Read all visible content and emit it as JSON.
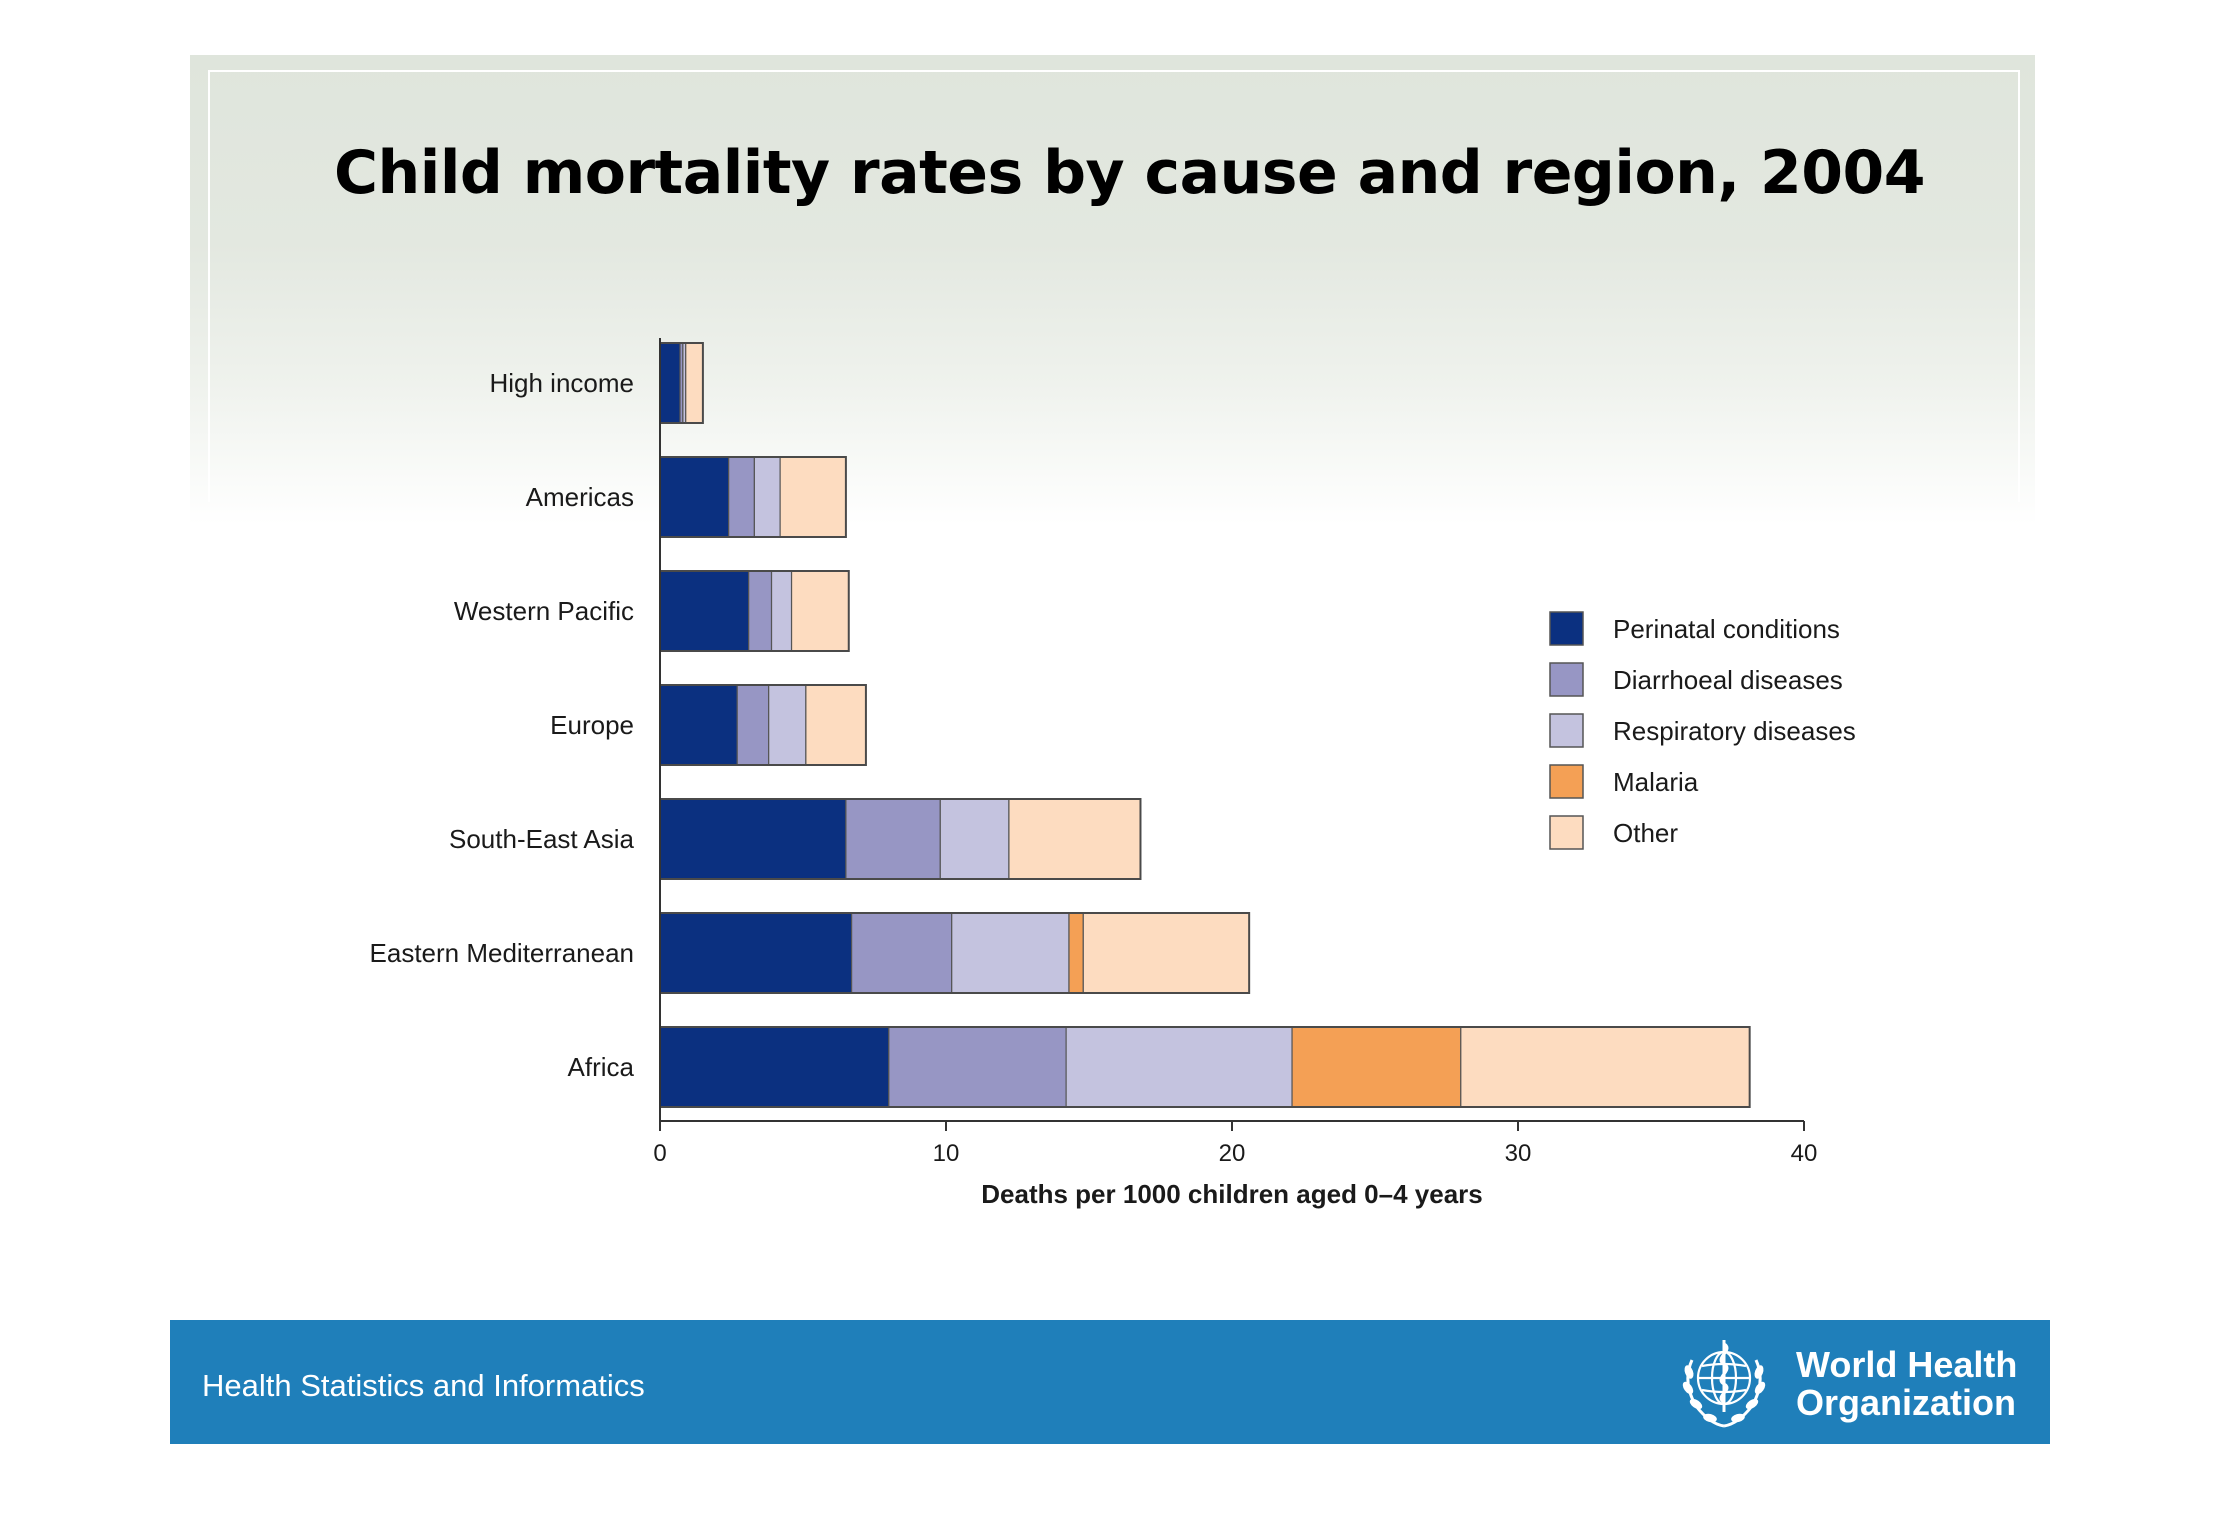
{
  "slide": {
    "title": "Child mortality rates by cause and region, 2004"
  },
  "colors": {
    "perinatal": "#0b3080",
    "diarrhoeal": "#9796c4",
    "respiratory": "#c4c3df",
    "malaria": "#f4a055",
    "other": "#fddcc0",
    "footer": "#1f7fba"
  },
  "chart_data": {
    "type": "bar",
    "orientation": "horizontal",
    "stacked": true,
    "title": "",
    "xlabel": "Deaths per 1000 children aged 0–4 years",
    "ylabel": "",
    "xlim": [
      0,
      40
    ],
    "xticks": [
      0,
      10,
      20,
      30,
      40
    ],
    "grid": false,
    "legend_position": "right",
    "categories": [
      "High income",
      "Americas",
      "Western Pacific",
      "Europe",
      "South-East Asia",
      "Eastern Mediterranean",
      "Africa"
    ],
    "series": [
      {
        "name": "Perinatal conditions",
        "color": "#0b3080",
        "values": [
          0.7,
          2.4,
          3.1,
          2.7,
          6.5,
          6.7,
          8.0
        ]
      },
      {
        "name": "Diarrhoeal diseases",
        "color": "#9796c4",
        "values": [
          0.1,
          0.9,
          0.8,
          1.1,
          3.3,
          3.5,
          6.2
        ]
      },
      {
        "name": "Respiratory diseases",
        "color": "#c4c3df",
        "values": [
          0.1,
          0.9,
          0.7,
          1.3,
          2.4,
          4.1,
          7.9
        ]
      },
      {
        "name": "Malaria",
        "color": "#f4a055",
        "values": [
          0.0,
          0.0,
          0.0,
          0.0,
          0.0,
          0.5,
          5.9
        ]
      },
      {
        "name": "Other",
        "color": "#fddcc0",
        "values": [
          0.6,
          2.3,
          2.0,
          2.1,
          4.6,
          5.8,
          10.1
        ]
      }
    ]
  },
  "footer": {
    "text": "Health Statistics and Informatics",
    "org_line1": "World Health",
    "org_line2": "Organization"
  }
}
